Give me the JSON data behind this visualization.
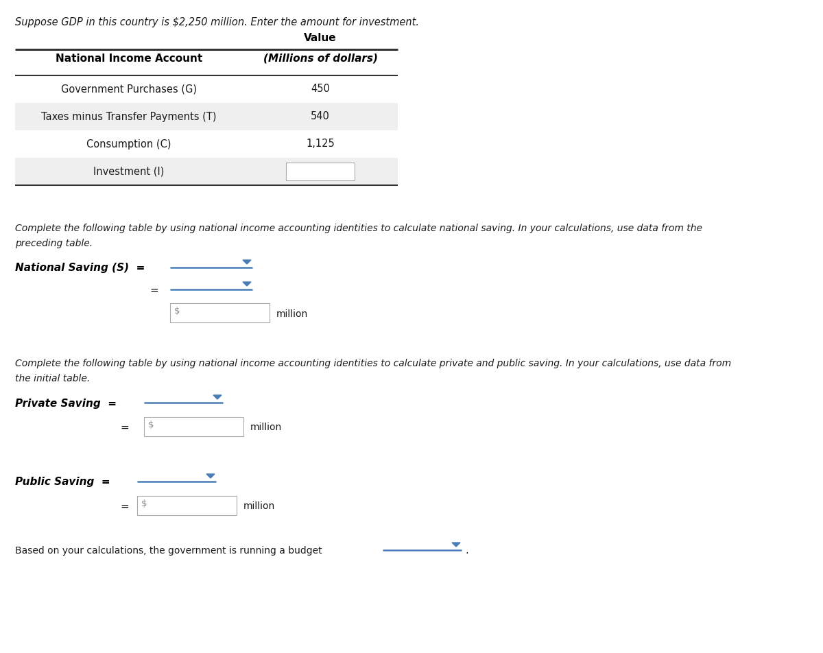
{
  "title_text": "Suppose GDP in this country is $2,250 million. Enter the amount for investment.",
  "table_header_col1": "National Income Account",
  "table_header_value_top": "Value",
  "table_header_col2": "(Millions of dollars)",
  "table_rows": [
    {
      "label": "Government Purchases (G)",
      "value": "450",
      "shaded": false,
      "input_box": false
    },
    {
      "label": "Taxes minus Transfer Payments (T)",
      "value": "540",
      "shaded": true,
      "input_box": false
    },
    {
      "label": "Consumption (C)",
      "value": "1,125",
      "shaded": false,
      "input_box": false
    },
    {
      "label": "Investment (I)",
      "value": "",
      "shaded": true,
      "input_box": true
    }
  ],
  "section2_line1": "Complete the following table by using national income accounting identities to calculate national saving. In your calculations, use data from the",
  "section2_line2": "preceding table.",
  "section3_line1": "Complete the following table by using national income accounting identities to calculate private and public saving. In your calculations, use data from",
  "section3_line2": "the initial table.",
  "budget_text": "Based on your calculations, the government is running a budget",
  "bg_color": "#ffffff",
  "shaded_row_color": "#efefef",
  "dropdown_color": "#4a7db5",
  "input_border_color": "#aaaaaa",
  "dollar_color": "#888888",
  "text_color": "#1a1a1a",
  "bold_color": "#000000",
  "line_color": "#333333"
}
